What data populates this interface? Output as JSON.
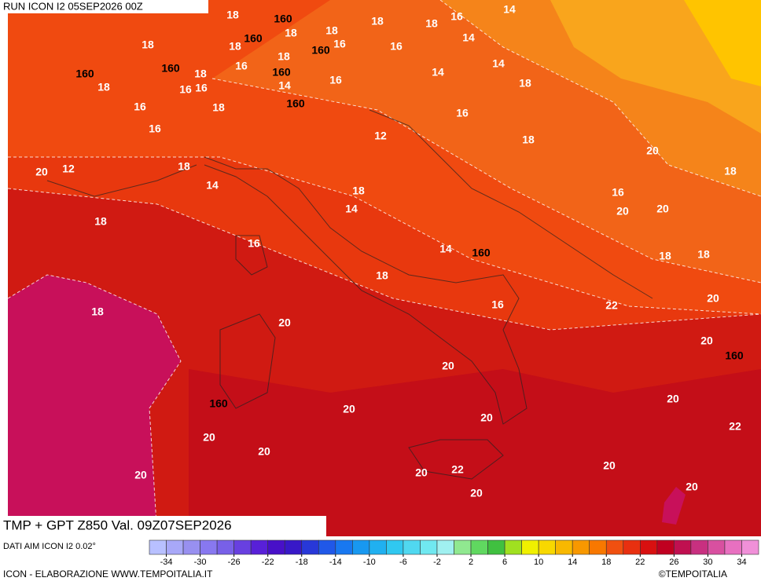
{
  "header": {
    "run": "RUN ICON I2 05SEP2026 00Z"
  },
  "map": {
    "title": "TMP + GPT Z850 Val. 09Z07SEP2026",
    "temperature_labels": [
      18,
      18,
      18,
      18,
      16,
      14,
      18,
      16,
      14,
      18,
      18,
      16,
      18,
      14,
      14,
      16,
      18,
      16,
      18,
      16,
      16,
      14,
      18,
      16,
      18,
      16,
      16,
      12,
      18,
      20,
      20,
      12,
      18,
      18,
      14,
      18,
      16,
      14,
      20,
      20,
      18,
      16,
      14,
      18,
      18,
      18,
      16,
      22,
      20,
      18,
      20,
      20,
      20,
      20,
      20,
      20,
      20,
      22,
      20,
      20,
      20,
      22,
      20,
      20,
      20
    ],
    "geopotential_labels": [
      160,
      160,
      160,
      160,
      160,
      160,
      160,
      160,
      160,
      160
    ]
  },
  "legend": {
    "source": "DATI AIM ICON I2 0.02°",
    "colors": [
      "#b8c0ff",
      "#a8a8f8",
      "#9890f0",
      "#8878f0",
      "#7860e8",
      "#6840e0",
      "#5820d8",
      "#4810c8",
      "#3818c8",
      "#2838d8",
      "#2058e8",
      "#1878f0",
      "#1898f0",
      "#20b0f0",
      "#30c8f0",
      "#50d8f0",
      "#70e8f0",
      "#a0f0f0",
      "#90e890",
      "#60d860",
      "#40c040",
      "#a0e020",
      "#f0f000",
      "#f8d800",
      "#f8b800",
      "#f89800",
      "#f87800",
      "#f05010",
      "#e83010",
      "#d81010",
      "#c00020",
      "#c01050",
      "#c83080",
      "#d850a0",
      "#e870c0",
      "#f090d8"
    ],
    "labels": [
      -34,
      -30,
      -26,
      -22,
      -18,
      -14,
      -10,
      -6,
      -2,
      2,
      6,
      10,
      14,
      18,
      22,
      26,
      30,
      34
    ]
  },
  "footer": {
    "credit": "ICON - ELABORAZIONE WWW.TEMPOITALIA.IT",
    "copyright": "©TEMPOITALIA"
  }
}
